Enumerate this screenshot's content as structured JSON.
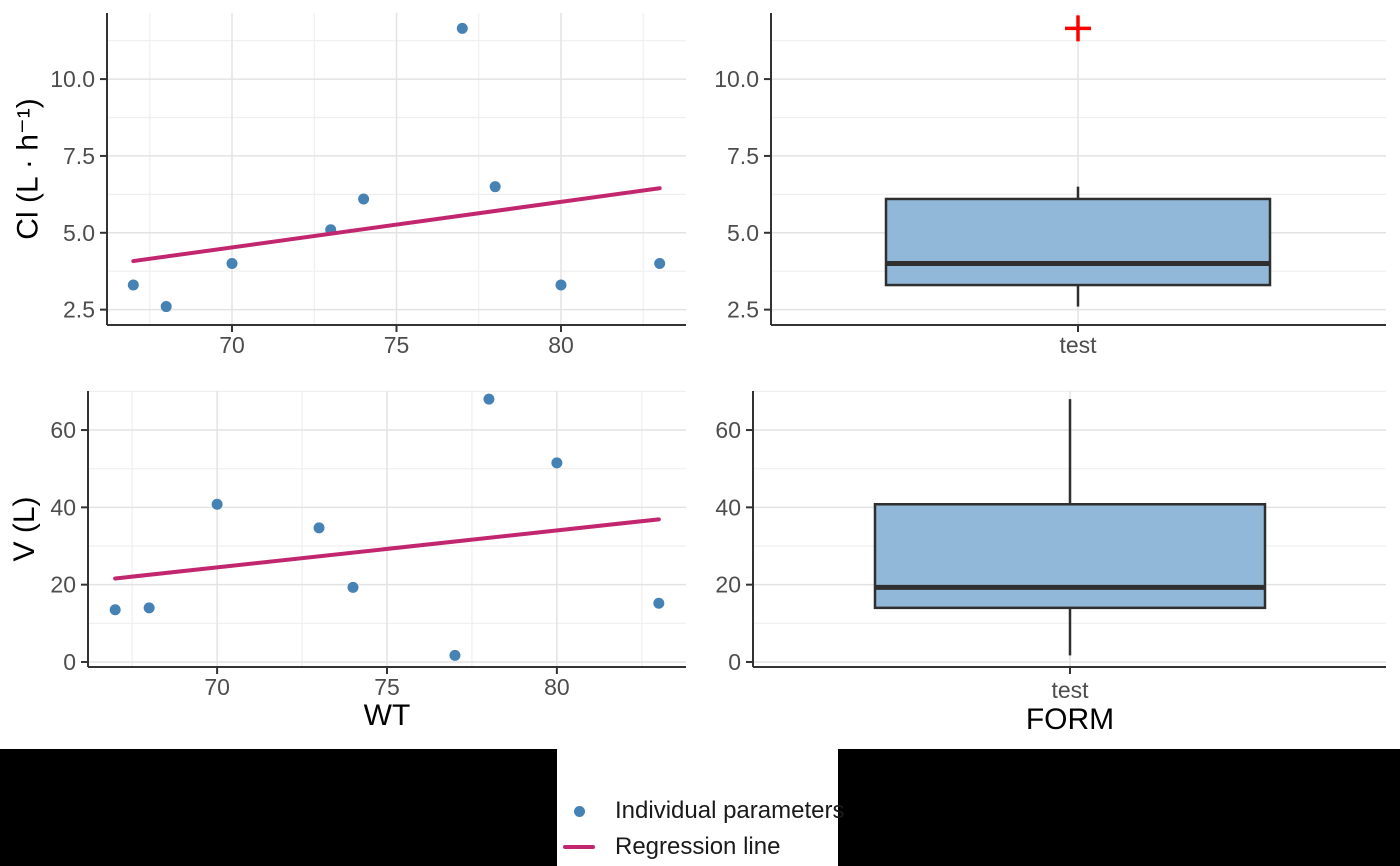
{
  "style": {
    "background": "#FFFFFF",
    "band_color": "#000000",
    "axis_color": "#333333",
    "grid_major": "#E3E3E3",
    "grid_minor": "#EFEFEF",
    "tick_label_color": "#4D4D4D",
    "title_color": "#000000",
    "legend_bg": "#FFFFFF",
    "legend_text": "#1A1A1A"
  },
  "legend": {
    "items": [
      {
        "label": "Individual parameters",
        "type": "point",
        "color": "#4682B4"
      },
      {
        "label": "Regression line",
        "type": "line",
        "color": "#C2266E"
      }
    ]
  },
  "chart_data": [
    {
      "id": "cl_vs_wt",
      "type": "scatter",
      "title": "",
      "xlabel": "",
      "ylabel": "Cl (L · h⁻¹)",
      "xlim": [
        66.2,
        83.8
      ],
      "ylim": [
        2.0,
        12.15
      ],
      "x_ticks": [
        70,
        75,
        80
      ],
      "x_tick_labels": [
        "70",
        "75",
        "80"
      ],
      "y_ticks": [
        2.5,
        5.0,
        7.5,
        10.0
      ],
      "y_tick_labels": [
        "2.5",
        "5.0",
        "7.5",
        "10.0"
      ],
      "x_minor": [
        67.5,
        72.5,
        77.5,
        82.5
      ],
      "y_minor": [
        3.75,
        6.25,
        8.75,
        11.25
      ],
      "grid": true,
      "series": [
        {
          "name": "Individual parameters",
          "type": "points",
          "color": "#4682B4",
          "x": [
            67,
            68,
            70,
            73,
            74,
            77,
            78,
            80,
            83
          ],
          "y": [
            3.3,
            2.6,
            4.0,
            5.1,
            6.1,
            11.65,
            6.5,
            3.3,
            4.0
          ]
        },
        {
          "name": "Regression line",
          "type": "line",
          "color": "#C2266E",
          "x": [
            67,
            83
          ],
          "y": [
            4.08,
            6.45
          ]
        }
      ]
    },
    {
      "id": "cl_box",
      "type": "box",
      "title": "",
      "xlabel": "",
      "ylabel": "",
      "categories": [
        "test"
      ],
      "ylim": [
        2.0,
        12.15
      ],
      "y_ticks": [
        2.5,
        5.0,
        7.5,
        10.0
      ],
      "y_tick_labels": [
        "2.5",
        "5.0",
        "7.5",
        "10.0"
      ],
      "y_minor": [
        3.75,
        6.25,
        8.75,
        11.25
      ],
      "grid": true,
      "box_fill": "#92B8D9",
      "box_border": "#2F2F2F",
      "outlier_color": "#FF0000",
      "boxes": [
        {
          "category": "test",
          "lower": 2.6,
          "q1": 3.3,
          "median": 4.0,
          "q3": 6.1,
          "upper": 6.5,
          "outliers": [
            11.65
          ]
        }
      ]
    },
    {
      "id": "v_vs_wt",
      "type": "scatter",
      "title": "",
      "xlabel": "WT",
      "ylabel": "V (L)",
      "xlim": [
        66.2,
        83.8
      ],
      "ylim": [
        -1.3,
        70.1
      ],
      "x_ticks": [
        70,
        75,
        80
      ],
      "x_tick_labels": [
        "70",
        "75",
        "80"
      ],
      "y_ticks": [
        0,
        20,
        40,
        60
      ],
      "y_tick_labels": [
        "0",
        "20",
        "40",
        "60"
      ],
      "x_minor": [
        67.5,
        72.5,
        77.5,
        82.5
      ],
      "y_minor": [
        10,
        30,
        50,
        70
      ],
      "grid": true,
      "series": [
        {
          "name": "Individual parameters",
          "type": "points",
          "color": "#4682B4",
          "x": [
            67,
            68,
            70,
            73,
            74,
            77,
            78,
            80,
            83
          ],
          "y": [
            13.5,
            14.0,
            40.8,
            34.7,
            19.3,
            1.7,
            68.0,
            51.5,
            15.2
          ]
        },
        {
          "name": "Regression line",
          "type": "line",
          "color": "#C2266E",
          "x": [
            67,
            83
          ],
          "y": [
            21.6,
            36.9
          ]
        }
      ]
    },
    {
      "id": "v_box",
      "type": "box",
      "title": "",
      "xlabel": "FORM",
      "ylabel": "",
      "categories": [
        "test"
      ],
      "ylim": [
        -1.3,
        70.1
      ],
      "y_ticks": [
        0,
        20,
        40,
        60
      ],
      "y_tick_labels": [
        "0",
        "20",
        "40",
        "60"
      ],
      "y_minor": [
        10,
        30,
        50,
        70
      ],
      "grid": true,
      "box_fill": "#92B8D9",
      "box_border": "#2F2F2F",
      "outlier_color": "#FF0000",
      "boxes": [
        {
          "category": "test",
          "lower": 1.7,
          "q1": 14.0,
          "median": 19.3,
          "q3": 40.8,
          "upper": 68.0,
          "outliers": []
        }
      ]
    }
  ]
}
